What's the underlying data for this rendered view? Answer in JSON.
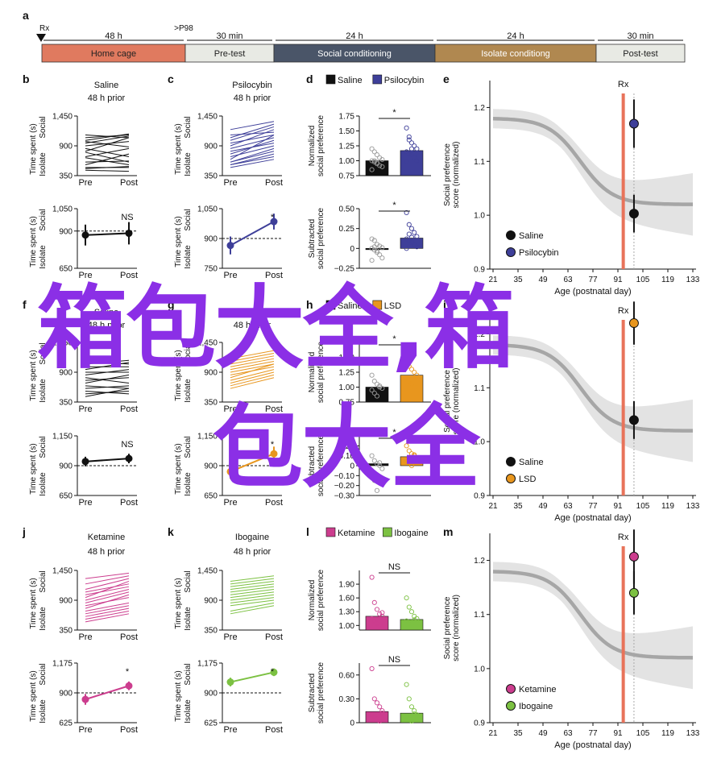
{
  "timeline": {
    "panel_label": "a",
    "rx_label": "Rx",
    "p98_label": ">P98",
    "segments": [
      {
        "duration": "48 h",
        "label": "Home cage",
        "color": "#e07a5f",
        "text_color": "#222222"
      },
      {
        "duration": "30 min",
        "label": "Pre-test",
        "color": "#e8eae4",
        "text_color": "#222222"
      },
      {
        "duration": "24 h",
        "label": "Social conditioning",
        "color": "#4a5568",
        "text_color": "#ffffff"
      },
      {
        "duration": "24 h",
        "label": "Isolate conditiong",
        "color": "#b08850",
        "text_color": "#ffffff"
      },
      {
        "duration": "30 min",
        "label": "Post-test",
        "color": "#e8eae4",
        "text_color": "#222222"
      }
    ]
  },
  "watermark": {
    "line1": "箱包大全,箱",
    "line2": "包大全",
    "color": "#8b2fe6"
  },
  "common_text": {
    "ylabel_time": "Time spent (s)",
    "social": "Social",
    "isolate": "Isolate",
    "pre": "Pre",
    "post": "Post",
    "normalized_ylabel": [
      "Normalized",
      "social preference"
    ],
    "subtracted_ylabel": [
      "Subtracted",
      "social preference"
    ],
    "score_ylabel": [
      "Social preference",
      "score (normalized)"
    ],
    "xlabel_age": "Age (postnatal day)",
    "rx": "Rx",
    "saline": "Saline"
  },
  "chart_data": [
    {
      "type": "line",
      "group": 0,
      "letter": "b",
      "drug": "Saline",
      "subtitle": "48 h prior",
      "color": "#111111",
      "top": {
        "ylim": [
          350,
          1450
        ],
        "ticks": [
          "1,450",
          "900",
          "350"
        ],
        "tick_values": [
          1450,
          900,
          350
        ],
        "lines": [
          [
            1100,
            1050
          ],
          [
            1050,
            1100
          ],
          [
            1000,
            1120
          ],
          [
            980,
            880
          ],
          [
            950,
            1080
          ],
          [
            900,
            980
          ],
          [
            850,
            700
          ],
          [
            800,
            1050
          ],
          [
            780,
            600
          ],
          [
            700,
            850
          ],
          [
            680,
            550
          ],
          [
            600,
            620
          ],
          [
            550,
            750
          ],
          [
            500,
            500
          ],
          [
            480,
            520
          ],
          [
            450,
            430
          ]
        ]
      },
      "bottom": {
        "ylim": [
          650,
          1050
        ],
        "ticks": [
          "1,050",
          "900",
          "650"
        ],
        "tick_values": [
          1050,
          900,
          650
        ],
        "pre": 873,
        "post": 885,
        "pre_err": 70,
        "post_err": 75,
        "sig": "NS"
      }
    },
    {
      "type": "line",
      "group": 0,
      "letter": "c",
      "drug": "Psilocybin",
      "subtitle": "48 h prior",
      "color": "#3e3f99",
      "top": {
        "ylim": [
          350,
          1450
        ],
        "ticks": [
          "1,450",
          "900",
          "350"
        ],
        "tick_values": [
          1450,
          900,
          350
        ],
        "lines": [
          [
            1200,
            1350
          ],
          [
            1100,
            1150
          ],
          [
            1050,
            1300
          ],
          [
            1000,
            1250
          ],
          [
            950,
            1100
          ],
          [
            900,
            1200
          ],
          [
            850,
            1050
          ],
          [
            800,
            950
          ],
          [
            750,
            1000
          ],
          [
            700,
            900
          ],
          [
            650,
            1100
          ],
          [
            600,
            800
          ],
          [
            600,
            850
          ],
          [
            550,
            700
          ],
          [
            550,
            750
          ],
          [
            500,
            650
          ]
        ]
      },
      "bottom": {
        "ylim": [
          750,
          1050
        ],
        "ticks": [
          "1,050",
          "900",
          "750"
        ],
        "tick_values": [
          1050,
          900,
          750
        ],
        "pre": 865,
        "post": 985,
        "pre_err": 45,
        "post_err": 40,
        "sig": "*"
      }
    },
    {
      "type": "bar",
      "group": 0,
      "letter": "d",
      "legend": [
        "Saline",
        "Psilocybin"
      ],
      "colors": [
        "#111111",
        "#3e3f99"
      ],
      "top": {
        "ylim": [
          0.75,
          1.75
        ],
        "ticks": [
          "1.75",
          "1.50",
          "1.25",
          "1.00",
          "0.75"
        ],
        "tick_values": [
          1.75,
          1.5,
          1.25,
          1.0,
          0.75
        ],
        "bars": [
          1.0,
          1.17
        ],
        "sig": "*",
        "points": [
          [
            1.2,
            1.15,
            1.1,
            1.05,
            1.02,
            1.0,
            0.98,
            0.95,
            0.92,
            0.9,
            0.85,
            1.0,
            0.97
          ],
          [
            1.55,
            1.4,
            1.3,
            1.25,
            1.2,
            1.15,
            1.12,
            1.1,
            1.05,
            1.0,
            0.98,
            1.35,
            1.2
          ]
        ]
      },
      "bottom": {
        "ylim": [
          -0.25,
          0.5
        ],
        "ticks": [
          "0.50",
          "0.25",
          "0",
          "−0.25"
        ],
        "tick_values": [
          0.5,
          0.25,
          0,
          -0.25
        ],
        "bars": [
          0.0,
          0.13
        ],
        "sig": "*",
        "points": [
          [
            0.12,
            0.1,
            0.05,
            0.03,
            0.01,
            0,
            -0.02,
            -0.05,
            -0.08,
            -0.12,
            -0.15,
            0.02,
            -0.03
          ],
          [
            0.45,
            0.3,
            0.25,
            0.2,
            0.15,
            0.12,
            0.1,
            0.08,
            0.05,
            0.02,
            0.0,
            0.18,
            0.14
          ]
        ]
      }
    },
    {
      "type": "scatter",
      "group": 0,
      "letter": "e",
      "xticks": [
        21,
        35,
        49,
        63,
        77,
        91,
        105,
        119,
        133
      ],
      "xlim": [
        21,
        133
      ],
      "ylim": [
        0.9,
        1.25
      ],
      "yticks": [
        "1.2",
        "1.1",
        "1.0",
        "0.9"
      ],
      "ytick_values": [
        1.2,
        1.1,
        1.0,
        0.9
      ],
      "rx_x": 94,
      "marker_x": 100,
      "legend": [
        "Saline",
        "Psilocybin"
      ],
      "colors": [
        "#111111",
        "#3e3f99"
      ],
      "points": [
        {
          "y": 1.003,
          "err": 0.035
        },
        {
          "y": 1.17,
          "err": 0.045
        }
      ]
    },
    {
      "type": "line",
      "group": 1,
      "letter": "f",
      "drug": "Saline",
      "subtitle": "48 h prior",
      "color": "#111111",
      "top": {
        "ylim": [
          350,
          1450
        ],
        "ticks": [
          "1,450",
          "900",
          "350"
        ],
        "tick_values": [
          1450,
          900,
          350
        ],
        "lines": [
          [
            1100,
            1050
          ],
          [
            1050,
            1120
          ],
          [
            1000,
            1000
          ],
          [
            950,
            1080
          ],
          [
            900,
            900
          ],
          [
            850,
            950
          ],
          [
            800,
            700
          ],
          [
            750,
            800
          ],
          [
            700,
            850
          ],
          [
            650,
            600
          ],
          [
            600,
            650
          ],
          [
            550,
            500
          ],
          [
            500,
            550
          ],
          [
            450,
            600
          ]
        ]
      },
      "bottom": {
        "ylim": [
          650,
          1150
        ],
        "ticks": [
          "1,150",
          "900",
          "650"
        ],
        "tick_values": [
          1150,
          900,
          650
        ],
        "pre": 935,
        "post": 960,
        "pre_err": 40,
        "post_err": 40,
        "sig": "NS"
      }
    },
    {
      "type": "line",
      "group": 1,
      "letter": "g",
      "drug": "LSD",
      "subtitle": "48 h prior",
      "color": "#e8961e",
      "top": {
        "ylim": [
          350,
          1450
        ],
        "ticks": [
          "1,450",
          "900",
          "350"
        ],
        "tick_values": [
          1450,
          900,
          350
        ],
        "lines": [
          [
            1150,
            1300
          ],
          [
            1100,
            1250
          ],
          [
            1050,
            1200
          ],
          [
            1000,
            1150
          ],
          [
            950,
            1100
          ],
          [
            900,
            1050
          ],
          [
            850,
            1000
          ],
          [
            800,
            1050
          ],
          [
            750,
            950
          ],
          [
            700,
            900
          ],
          [
            650,
            850
          ],
          [
            600,
            800
          ]
        ]
      },
      "bottom": {
        "ylim": [
          650,
          1150
        ],
        "ticks": [
          "1,150",
          "900",
          "650"
        ],
        "tick_values": [
          1150,
          900,
          650
        ],
        "pre": 850,
        "post": 1000,
        "pre_err": 60,
        "post_err": 60,
        "sig": "*"
      }
    },
    {
      "type": "bar",
      "group": 1,
      "letter": "h",
      "legend": [
        "Saline",
        "LSD"
      ],
      "colors": [
        "#111111",
        "#e8961e"
      ],
      "top": {
        "ylim": [
          0.75,
          1.75
        ],
        "ticks": [
          "1.50",
          "1.25",
          "1.00",
          "0.75"
        ],
        "tick_values": [
          1.5,
          1.25,
          1.0,
          0.75
        ],
        "bars": [
          1.0,
          1.2
        ],
        "sig": "*",
        "points": [
          [
            1.2,
            1.1,
            1.05,
            1.0,
            0.98,
            0.95,
            0.9,
            0.85,
            1.02
          ],
          [
            1.45,
            1.35,
            1.3,
            1.25,
            1.2,
            1.15,
            1.1,
            1.05,
            1.0
          ]
        ]
      },
      "bottom": {
        "ylim": [
          -0.3,
          0.3
        ],
        "ticks": [
          "0.30",
          "0.20",
          "0.10",
          "0",
          "−0.10",
          "−0.20",
          "−0.30"
        ],
        "tick_values": [
          0.3,
          0.2,
          0.1,
          0,
          -0.1,
          -0.2,
          -0.3
        ],
        "bars": [
          0.02,
          0.09
        ],
        "sig": "*",
        "points": [
          [
            0.1,
            0.05,
            0.02,
            0.0,
            -0.03,
            -0.08,
            -0.15,
            -0.25,
            0.03
          ],
          [
            0.2,
            0.15,
            0.12,
            0.1,
            0.08,
            0.05,
            0.03,
            0.0,
            0.11
          ]
        ]
      }
    },
    {
      "type": "scatter",
      "group": 1,
      "letter": "i",
      "xticks": [
        21,
        35,
        49,
        63,
        77,
        91,
        105,
        119,
        133
      ],
      "xlim": [
        21,
        133
      ],
      "ylim": [
        0.9,
        1.25
      ],
      "yticks": [
        "1.2",
        "1.1",
        "1.0",
        "0.9"
      ],
      "ytick_values": [
        1.2,
        1.1,
        1.0,
        0.9
      ],
      "rx_x": 94,
      "marker_x": 100,
      "legend": [
        "Saline",
        "LSD"
      ],
      "colors": [
        "#111111",
        "#e8961e"
      ],
      "points": [
        {
          "y": 1.04,
          "err": 0.035
        },
        {
          "y": 1.22,
          "err": 0.04
        }
      ]
    },
    {
      "type": "line",
      "group": 2,
      "letter": "j",
      "drug": "Ketamine",
      "subtitle": "48 h prior",
      "color": "#cc3d8e",
      "top": {
        "ylim": [
          350,
          1450
        ],
        "ticks": [
          "1,450",
          "900",
          "350"
        ],
        "tick_values": [
          1450,
          900,
          350
        ],
        "lines": [
          [
            1300,
            1400
          ],
          [
            1200,
            1350
          ],
          [
            1100,
            1300
          ],
          [
            1050,
            1200
          ],
          [
            1000,
            1150
          ],
          [
            950,
            1250
          ],
          [
            900,
            1100
          ],
          [
            850,
            1050
          ],
          [
            800,
            950
          ],
          [
            750,
            1000
          ],
          [
            700,
            850
          ],
          [
            650,
            800
          ],
          [
            600,
            750
          ],
          [
            550,
            700
          ],
          [
            500,
            650
          ]
        ]
      },
      "bottom": {
        "ylim": [
          625,
          1175
        ],
        "ticks": [
          "1,175",
          "900",
          "625"
        ],
        "tick_values": [
          1175,
          900,
          625
        ],
        "pre": 840,
        "post": 965,
        "pre_err": 50,
        "post_err": 40,
        "sig": "*"
      }
    },
    {
      "type": "line",
      "group": 2,
      "letter": "k",
      "drug": "Ibogaine",
      "subtitle": "48 h prior",
      "color": "#7cc142",
      "top": {
        "ylim": [
          350,
          1450
        ],
        "ticks": [
          "1,450",
          "900",
          "350"
        ],
        "tick_values": [
          1450,
          900,
          350
        ],
        "lines": [
          [
            1250,
            1350
          ],
          [
            1200,
            1300
          ],
          [
            1150,
            1250
          ],
          [
            1100,
            1200
          ],
          [
            1050,
            1150
          ],
          [
            1000,
            1100
          ],
          [
            950,
            1050
          ],
          [
            900,
            1000
          ],
          [
            850,
            950
          ],
          [
            800,
            900
          ],
          [
            700,
            850
          ],
          [
            650,
            800
          ]
        ]
      },
      "bottom": {
        "ylim": [
          625,
          1175
        ],
        "ticks": [
          "1,175",
          "900",
          "625"
        ],
        "tick_values": [
          1175,
          900,
          625
        ],
        "pre": 1000,
        "post": 1090,
        "pre_err": 40,
        "post_err": 35,
        "sig": "*"
      }
    },
    {
      "type": "bar",
      "group": 2,
      "letter": "l",
      "legend": [
        "Ketamine",
        "Ibogaine"
      ],
      "colors": [
        "#cc3d8e",
        "#7cc142"
      ],
      "top": {
        "ylim": [
          0.9,
          2.2
        ],
        "ticks": [
          "1.90",
          "1.60",
          "1.30",
          "1.00"
        ],
        "tick_values": [
          1.9,
          1.6,
          1.3,
          1.0
        ],
        "bars": [
          1.2,
          1.13
        ],
        "sig": "NS",
        "points": [
          [
            2.05,
            1.5,
            1.35,
            1.25,
            1.2,
            1.15,
            1.1,
            1.05,
            1.0,
            1.28
          ],
          [
            1.6,
            1.4,
            1.3,
            1.2,
            1.15,
            1.1,
            1.05,
            1.0,
            1.12
          ]
        ]
      },
      "bottom": {
        "ylim": [
          0,
          0.75
        ],
        "ticks": [
          "0.60",
          "0.30",
          "0"
        ],
        "tick_values": [
          0.6,
          0.3,
          0
        ],
        "bars": [
          0.14,
          0.12
        ],
        "sig": "NS",
        "points": [
          [
            0.68,
            0.3,
            0.25,
            0.2,
            0.15,
            0.1,
            0.08,
            0.05,
            0.02,
            0.12
          ],
          [
            0.48,
            0.3,
            0.2,
            0.15,
            0.1,
            0.08,
            0.05,
            0.02,
            0.11
          ]
        ]
      }
    },
    {
      "type": "scatter",
      "group": 2,
      "letter": "m",
      "xticks": [
        21,
        35,
        49,
        63,
        77,
        91,
        105,
        119,
        133
      ],
      "xlim": [
        21,
        133
      ],
      "ylim": [
        0.9,
        1.25
      ],
      "yticks": [
        "1.2",
        "1.1",
        "1.0",
        "0.9"
      ],
      "ytick_values": [
        1.2,
        1.1,
        1.0,
        0.9
      ],
      "rx_x": 94,
      "marker_x": 100,
      "legend": [
        "Ketamine",
        "Ibogaine"
      ],
      "colors": [
        "#cc3d8e",
        "#7cc142"
      ],
      "points": [
        {
          "y": 1.207,
          "err": 0.05
        },
        {
          "y": 1.14,
          "err": 0.04
        }
      ]
    }
  ]
}
